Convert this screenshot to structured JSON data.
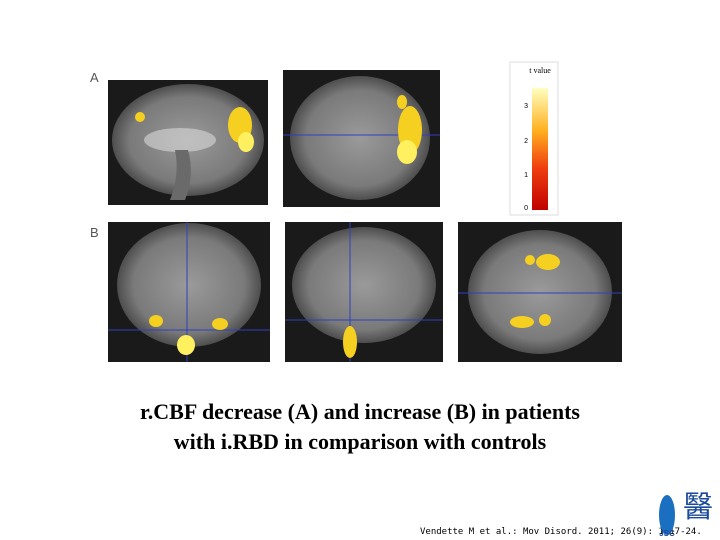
{
  "figure": {
    "panel_labels": [
      "A",
      "B"
    ],
    "colorbar": {
      "label": "t value",
      "ticks": [
        3,
        2,
        1,
        0
      ]
    }
  },
  "caption": [
    "r.CBF decrease (A) and increase (B) in patients",
    "with i.RBD in comparison with controls"
  ],
  "citation": "Vendette M et al.: Mov Disord. 2011; 26(9): 1717-24.",
  "logo": {
    "symbol": "醫",
    "text": "JSC"
  }
}
